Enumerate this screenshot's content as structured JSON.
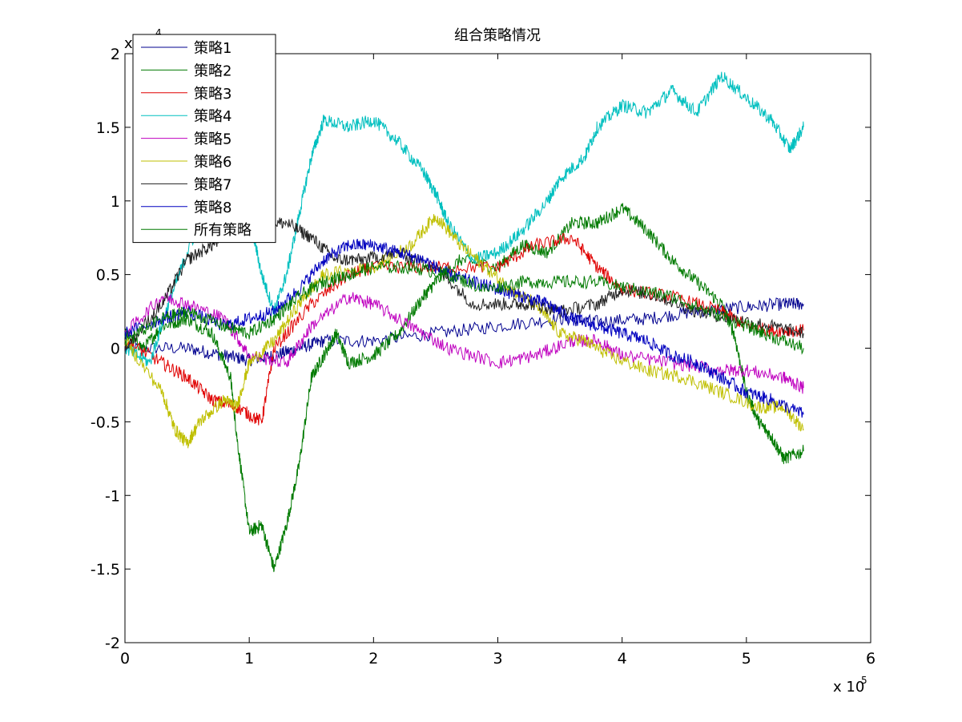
{
  "chart_data": {
    "type": "line",
    "title": "组合策略情况",
    "xlabel": "",
    "ylabel": "",
    "xlim": [
      0,
      6
    ],
    "ylim": [
      -2,
      2
    ],
    "x_multiplier": "x 10",
    "x_multiplier_exp": "5",
    "y_multiplier": "x 10",
    "y_multiplier_exp": "4",
    "x_ticks": [
      0,
      1,
      2,
      3,
      4,
      5,
      6
    ],
    "x_tick_labels": [
      "0",
      "1",
      "2",
      "3",
      "4",
      "5",
      "6"
    ],
    "y_ticks": [
      -2,
      -1.5,
      -1,
      -0.5,
      0,
      0.5,
      1,
      1.5,
      2
    ],
    "y_tick_labels": [
      "-2",
      "-1.5",
      "-1",
      "-0.5",
      "0",
      "0.5",
      "1",
      "1.5",
      "2"
    ],
    "grid": false,
    "legend_position": "top-left",
    "series": [
      {
        "name": "策略1",
        "color": "#00008f",
        "points": [
          [
            0,
            0.0
          ],
          [
            0.5,
            0.0
          ],
          [
            0.8,
            -0.05
          ],
          [
            1.0,
            -0.08
          ],
          [
            1.2,
            -0.05
          ],
          [
            1.4,
            0.0
          ],
          [
            1.6,
            0.05
          ],
          [
            2.0,
            0.05
          ],
          [
            2.5,
            0.1
          ],
          [
            3.0,
            0.15
          ],
          [
            3.5,
            0.2
          ],
          [
            3.8,
            0.18
          ],
          [
            4.2,
            0.2
          ],
          [
            4.6,
            0.25
          ],
          [
            5.0,
            0.28
          ],
          [
            5.3,
            0.3
          ],
          [
            5.46,
            0.3
          ]
        ]
      },
      {
        "name": "策略2",
        "color": "#007a00",
        "points": [
          [
            0,
            0.1
          ],
          [
            0.15,
            0.0
          ],
          [
            0.3,
            0.15
          ],
          [
            0.5,
            0.2
          ],
          [
            0.7,
            0.1
          ],
          [
            0.85,
            -0.2
          ],
          [
            0.9,
            -0.6
          ],
          [
            1.0,
            -1.25
          ],
          [
            1.1,
            -1.2
          ],
          [
            1.2,
            -1.5
          ],
          [
            1.3,
            -1.2
          ],
          [
            1.4,
            -0.8
          ],
          [
            1.5,
            -0.2
          ],
          [
            1.6,
            -0.05
          ],
          [
            1.7,
            0.1
          ],
          [
            1.8,
            -0.1
          ],
          [
            2.0,
            -0.05
          ],
          [
            2.2,
            0.1
          ],
          [
            2.4,
            0.35
          ],
          [
            2.5,
            0.45
          ],
          [
            2.7,
            0.6
          ],
          [
            3.0,
            0.55
          ],
          [
            3.2,
            0.7
          ],
          [
            3.4,
            0.65
          ],
          [
            3.6,
            0.85
          ],
          [
            3.8,
            0.85
          ],
          [
            4.0,
            0.95
          ],
          [
            4.2,
            0.8
          ],
          [
            4.4,
            0.6
          ],
          [
            4.6,
            0.45
          ],
          [
            4.8,
            0.3
          ],
          [
            4.9,
            0.1
          ],
          [
            5.0,
            -0.3
          ],
          [
            5.1,
            -0.5
          ],
          [
            5.2,
            -0.6
          ],
          [
            5.3,
            -0.75
          ],
          [
            5.46,
            -0.7
          ]
        ]
      },
      {
        "name": "策略3",
        "color": "#e00000",
        "points": [
          [
            0,
            0.05
          ],
          [
            0.3,
            -0.1
          ],
          [
            0.5,
            -0.2
          ],
          [
            0.7,
            -0.35
          ],
          [
            0.9,
            -0.4
          ],
          [
            1.1,
            -0.5
          ],
          [
            1.2,
            0.0
          ],
          [
            1.5,
            0.3
          ],
          [
            1.8,
            0.5
          ],
          [
            2.0,
            0.55
          ],
          [
            2.5,
            0.55
          ],
          [
            3.0,
            0.55
          ],
          [
            3.3,
            0.7
          ],
          [
            3.6,
            0.75
          ],
          [
            3.8,
            0.55
          ],
          [
            4.0,
            0.4
          ],
          [
            4.4,
            0.35
          ],
          [
            4.8,
            0.25
          ],
          [
            5.0,
            0.15
          ],
          [
            5.2,
            0.12
          ],
          [
            5.46,
            0.12
          ]
        ]
      },
      {
        "name": "策略4",
        "color": "#00bfbf",
        "points": [
          [
            0,
            0.0
          ],
          [
            0.2,
            -0.1
          ],
          [
            0.35,
            0.3
          ],
          [
            0.5,
            0.65
          ],
          [
            0.7,
            1.05
          ],
          [
            0.9,
            1.2
          ],
          [
            1.0,
            0.9
          ],
          [
            1.1,
            0.5
          ],
          [
            1.2,
            0.25
          ],
          [
            1.3,
            0.5
          ],
          [
            1.4,
            0.9
          ],
          [
            1.5,
            1.3
          ],
          [
            1.6,
            1.55
          ],
          [
            1.8,
            1.5
          ],
          [
            2.0,
            1.55
          ],
          [
            2.2,
            1.4
          ],
          [
            2.4,
            1.2
          ],
          [
            2.5,
            1.05
          ],
          [
            2.6,
            0.85
          ],
          [
            2.8,
            0.6
          ],
          [
            3.0,
            0.65
          ],
          [
            3.2,
            0.8
          ],
          [
            3.4,
            1.0
          ],
          [
            3.5,
            1.15
          ],
          [
            3.7,
            1.3
          ],
          [
            3.8,
            1.5
          ],
          [
            4.0,
            1.65
          ],
          [
            4.2,
            1.6
          ],
          [
            4.4,
            1.75
          ],
          [
            4.6,
            1.6
          ],
          [
            4.8,
            1.85
          ],
          [
            5.0,
            1.7
          ],
          [
            5.2,
            1.55
          ],
          [
            5.35,
            1.35
          ],
          [
            5.46,
            1.5
          ]
        ]
      },
      {
        "name": "策略5",
        "color": "#bf00bf",
        "points": [
          [
            0,
            0.1
          ],
          [
            0.3,
            0.35
          ],
          [
            0.5,
            0.3
          ],
          [
            0.8,
            0.2
          ],
          [
            1.0,
            -0.05
          ],
          [
            1.3,
            -0.1
          ],
          [
            1.5,
            0.15
          ],
          [
            1.8,
            0.35
          ],
          [
            2.0,
            0.3
          ],
          [
            2.3,
            0.15
          ],
          [
            2.6,
            0.0
          ],
          [
            3.0,
            -0.1
          ],
          [
            3.3,
            -0.05
          ],
          [
            3.6,
            0.05
          ],
          [
            3.8,
            0.05
          ],
          [
            4.0,
            -0.05
          ],
          [
            4.4,
            -0.1
          ],
          [
            4.8,
            -0.15
          ],
          [
            5.0,
            -0.15
          ],
          [
            5.3,
            -0.2
          ],
          [
            5.46,
            -0.27
          ]
        ]
      },
      {
        "name": "策略6",
        "color": "#bfbf00",
        "points": [
          [
            0,
            0.05
          ],
          [
            0.3,
            -0.3
          ],
          [
            0.4,
            -0.55
          ],
          [
            0.5,
            -0.65
          ],
          [
            0.6,
            -0.5
          ],
          [
            0.8,
            -0.35
          ],
          [
            0.9,
            -0.4
          ],
          [
            1.0,
            -0.1
          ],
          [
            1.2,
            0.05
          ],
          [
            1.4,
            0.3
          ],
          [
            1.6,
            0.5
          ],
          [
            2.0,
            0.55
          ],
          [
            2.3,
            0.7
          ],
          [
            2.5,
            0.9
          ],
          [
            2.7,
            0.7
          ],
          [
            2.9,
            0.55
          ],
          [
            3.1,
            0.4
          ],
          [
            3.3,
            0.3
          ],
          [
            3.5,
            0.1
          ],
          [
            3.7,
            0.05
          ],
          [
            3.9,
            -0.05
          ],
          [
            4.2,
            -0.15
          ],
          [
            4.5,
            -0.2
          ],
          [
            4.8,
            -0.3
          ],
          [
            5.1,
            -0.4
          ],
          [
            5.3,
            -0.4
          ],
          [
            5.46,
            -0.55
          ]
        ]
      },
      {
        "name": "策略7",
        "color": "#202020",
        "points": [
          [
            0,
            0.0
          ],
          [
            0.3,
            0.3
          ],
          [
            0.5,
            0.6
          ],
          [
            0.7,
            0.7
          ],
          [
            0.9,
            0.8
          ],
          [
            1.1,
            0.85
          ],
          [
            1.3,
            0.85
          ],
          [
            1.5,
            0.75
          ],
          [
            1.7,
            0.6
          ],
          [
            1.9,
            0.6
          ],
          [
            2.2,
            0.65
          ],
          [
            2.5,
            0.55
          ],
          [
            2.8,
            0.3
          ],
          [
            3.1,
            0.3
          ],
          [
            3.3,
            0.3
          ],
          [
            3.5,
            0.25
          ],
          [
            3.8,
            0.3
          ],
          [
            4.0,
            0.4
          ],
          [
            4.3,
            0.35
          ],
          [
            4.6,
            0.25
          ],
          [
            4.9,
            0.2
          ],
          [
            5.2,
            0.15
          ],
          [
            5.46,
            0.1
          ]
        ]
      },
      {
        "name": "策略8",
        "color": "#0000bf",
        "points": [
          [
            0,
            0.1
          ],
          [
            0.3,
            0.2
          ],
          [
            0.5,
            0.25
          ],
          [
            0.8,
            0.15
          ],
          [
            1.0,
            0.2
          ],
          [
            1.2,
            0.25
          ],
          [
            1.4,
            0.4
          ],
          [
            1.6,
            0.6
          ],
          [
            1.8,
            0.7
          ],
          [
            2.0,
            0.7
          ],
          [
            2.2,
            0.65
          ],
          [
            2.4,
            0.6
          ],
          [
            2.6,
            0.5
          ],
          [
            2.8,
            0.45
          ],
          [
            3.0,
            0.4
          ],
          [
            3.2,
            0.35
          ],
          [
            3.4,
            0.3
          ],
          [
            3.6,
            0.2
          ],
          [
            3.8,
            0.15
          ],
          [
            4.0,
            0.1
          ],
          [
            4.2,
            0.05
          ],
          [
            4.4,
            -0.05
          ],
          [
            4.6,
            -0.1
          ],
          [
            4.8,
            -0.2
          ],
          [
            5.0,
            -0.3
          ],
          [
            5.2,
            -0.35
          ],
          [
            5.46,
            -0.45
          ]
        ]
      },
      {
        "name": "所有策略",
        "color": "#007a00",
        "points": [
          [
            0,
            0.05
          ],
          [
            0.3,
            0.2
          ],
          [
            0.5,
            0.25
          ],
          [
            0.8,
            0.15
          ],
          [
            1.0,
            0.1
          ],
          [
            1.2,
            0.2
          ],
          [
            1.4,
            0.35
          ],
          [
            1.6,
            0.45
          ],
          [
            1.8,
            0.5
          ],
          [
            2.0,
            0.55
          ],
          [
            2.3,
            0.55
          ],
          [
            2.6,
            0.5
          ],
          [
            2.9,
            0.4
          ],
          [
            3.2,
            0.45
          ],
          [
            3.5,
            0.45
          ],
          [
            3.8,
            0.45
          ],
          [
            4.1,
            0.4
          ],
          [
            4.4,
            0.35
          ],
          [
            4.7,
            0.25
          ],
          [
            5.0,
            0.15
          ],
          [
            5.2,
            0.08
          ],
          [
            5.46,
            0.0
          ]
        ]
      }
    ]
  }
}
